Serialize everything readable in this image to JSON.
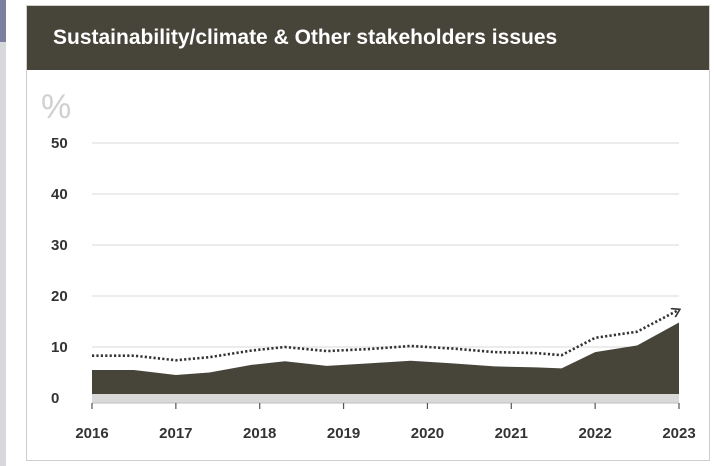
{
  "card": {
    "title": "Sustainability/climate & Other stakeholders issues"
  },
  "colors": {
    "header_bg": "#47443a",
    "area_fill": "#47443a",
    "baseline_band": "#d9d9d9",
    "grid": "#d9d9d9",
    "dotted_line": "#333333",
    "left_strip": "#d7d8db",
    "left_accent": "#7b7fa0"
  },
  "chart_data": {
    "type": "area",
    "unit_label": "%",
    "ylim": [
      0,
      50
    ],
    "yticks": [
      {
        "value": 0,
        "label": "0"
      },
      {
        "value": 10,
        "label": "10"
      },
      {
        "value": 20,
        "label": "20"
      },
      {
        "value": 30,
        "label": "30"
      },
      {
        "value": 40,
        "label": "40"
      },
      {
        "value": 50,
        "label": "50"
      }
    ],
    "xlim": [
      2016,
      2023
    ],
    "xticks": [
      {
        "value": 2016,
        "label": "2016"
      },
      {
        "value": 2017,
        "label": "2017"
      },
      {
        "value": 2018,
        "label": "2018"
      },
      {
        "value": 2019,
        "label": "2019"
      },
      {
        "value": 2020,
        "label": "2020"
      },
      {
        "value": 2021,
        "label": "2021"
      },
      {
        "value": 2022,
        "label": "2022"
      },
      {
        "value": 2023,
        "label": "2023"
      }
    ],
    "grid": true,
    "series": [
      {
        "kind": "area",
        "x": [
          2016,
          2016.5,
          2017,
          2017.4,
          2017.9,
          2018.3,
          2018.8,
          2019.3,
          2019.8,
          2020.3,
          2020.8,
          2021.3,
          2021.6,
          2022.0,
          2022.5,
          2023.0
        ],
        "y": [
          5.5,
          5.5,
          4.5,
          5.0,
          6.5,
          7.2,
          6.3,
          6.8,
          7.3,
          6.8,
          6.2,
          6.0,
          5.8,
          9.0,
          10.3,
          14.8
        ]
      },
      {
        "kind": "dotted-line",
        "x": [
          2016,
          2016.5,
          2017,
          2017.4,
          2017.9,
          2018.3,
          2018.8,
          2019.3,
          2019.8,
          2020.3,
          2020.8,
          2021.3,
          2021.6,
          2022.0,
          2022.5,
          2023.0
        ],
        "y": [
          8.3,
          8.3,
          7.4,
          8.0,
          9.3,
          10.0,
          9.2,
          9.6,
          10.2,
          9.7,
          9.0,
          8.8,
          8.4,
          11.8,
          13.0,
          17.3
        ],
        "arrow_end": true
      }
    ]
  }
}
